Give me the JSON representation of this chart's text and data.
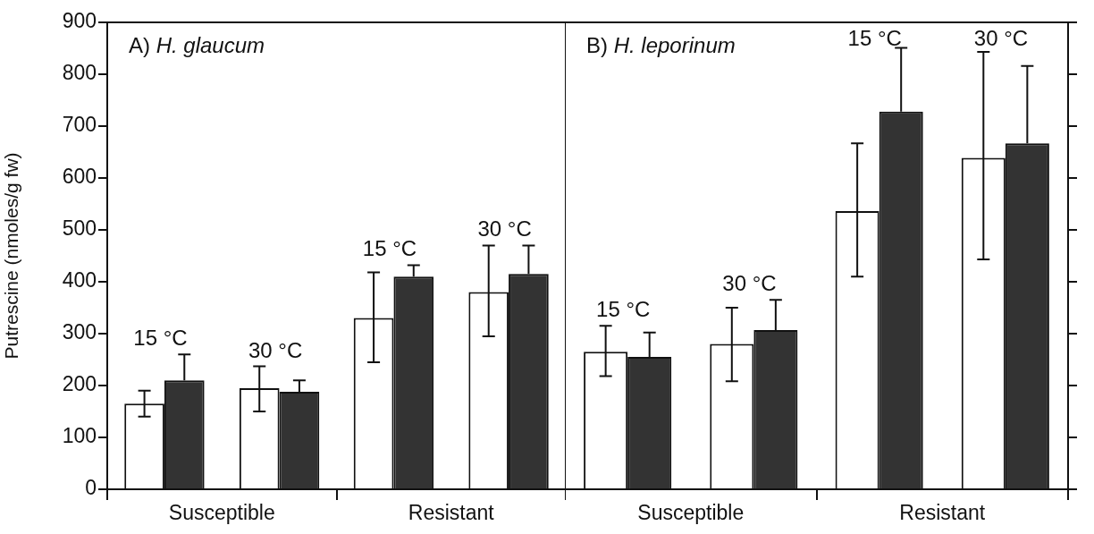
{
  "chart_data": [
    {
      "type": "bar",
      "title": "A) H. glaucum",
      "ylabel": "Putrescine (nmoles/g fw)",
      "categories": [
        "Susceptible",
        "Resistant"
      ],
      "ylim": [
        0,
        900
      ],
      "yticks": [
        0,
        100,
        200,
        300,
        400,
        500,
        600,
        700,
        800,
        900
      ],
      "grid": false,
      "legend": false,
      "series": [
        {
          "name": "15 °C",
          "color": "#ffffff",
          "values": [
            165,
            330
          ],
          "errors": [
            [
              140,
              190
            ],
            [
              245,
              418
            ]
          ]
        },
        {
          "color": "#333333",
          "values": [
            210,
            410
          ],
          "errors": [
            [
              210,
              260
            ],
            [
              410,
              432
            ]
          ]
        },
        {
          "name": "30 °C",
          "color": "#ffffff",
          "values": [
            195,
            380
          ],
          "errors": [
            [
              150,
              237
            ],
            [
              295,
              470
            ]
          ]
        },
        {
          "color": "#333333",
          "values": [
            188,
            415
          ],
          "errors": [
            [
              188,
              210
            ],
            [
              415,
              470
            ]
          ]
        }
      ]
    },
    {
      "type": "bar",
      "title": "B) H. leporinum",
      "categories": [
        "Susceptible",
        "Resistant"
      ],
      "ylim": [
        0,
        900
      ],
      "yticks": [
        0,
        100,
        200,
        300,
        400,
        500,
        600,
        700,
        800,
        900
      ],
      "tick_labels": "x",
      "grid": false,
      "legend": false,
      "series": [
        {
          "name": "15 °C",
          "color": "#ffffff",
          "values": [
            265,
            536
          ],
          "errors": [
            [
              218,
              315
            ],
            [
              410,
              667
            ]
          ]
        },
        {
          "color": "#333333",
          "values": [
            255,
            728
          ],
          "errors": [
            [
              255,
              302
            ],
            [
              728,
              851
            ]
          ]
        },
        {
          "name": "30 °C",
          "color": "#ffffff",
          "values": [
            280,
            639
          ],
          "errors": [
            [
              208,
              350
            ],
            [
              443,
              843
            ]
          ]
        },
        {
          "color": "#333333",
          "values": [
            307,
            667
          ],
          "errors": [
            [
              307,
              365
            ],
            [
              667,
              816
            ]
          ]
        }
      ]
    }
  ]
}
